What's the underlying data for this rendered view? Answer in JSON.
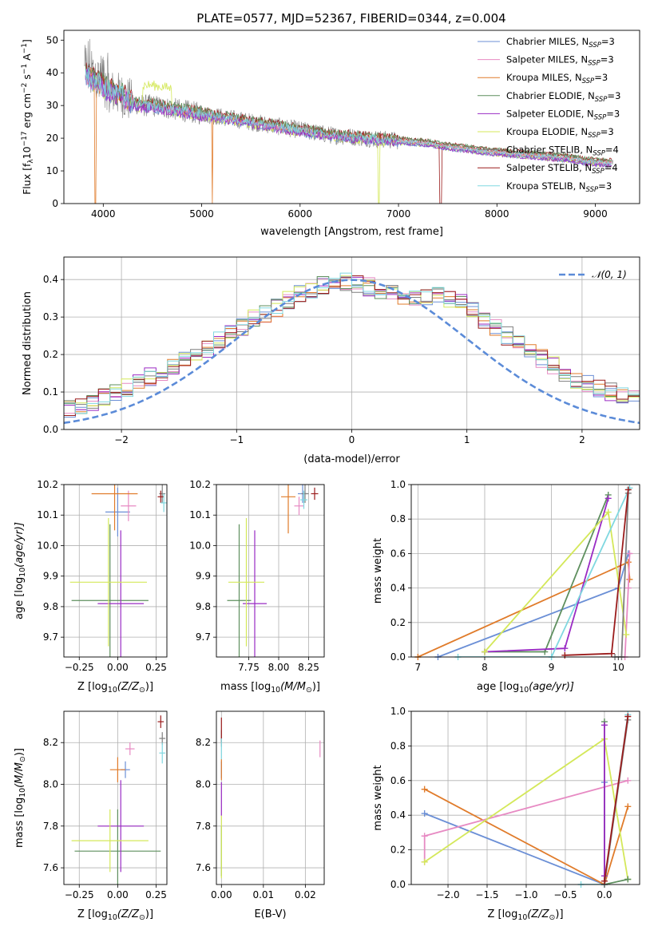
{
  "figure_title": "PLATE=0577, MJD=52367, FIBERID=0344, z=0.004",
  "colors": {
    "Chabrier MILES": "#6b8fd6",
    "Salpeter MILES": "#e78ac3",
    "Kroupa MILES": "#e07b2a",
    "Chabrier ELODIE": "#5e8f5e",
    "Salpeter ELODIE": "#9a2bc4",
    "Kroupa ELODIE": "#d4e85a",
    "Chabrier STELIB": "#7f7f7f",
    "Salpeter STELIB": "#9b1c1c",
    "Kroupa STELIB": "#80d8e0"
  },
  "chart_data": [
    {
      "id": "spectrum",
      "type": "line",
      "xlabel": "wavelength [Angstrom, rest frame]",
      "ylabel": "Flux [f",
      "ylabel_parts": [
        "Flux [f",
        "λ",
        "10",
        "−17",
        " erg cm",
        "−2",
        " s",
        "−1",
        " A",
        "−1",
        "]"
      ],
      "xlim": [
        3600,
        9450
      ],
      "ylim": [
        0,
        53
      ],
      "xticks": [
        4000,
        5000,
        6000,
        7000,
        8000,
        9000
      ],
      "yticks": [
        0,
        10,
        20,
        30,
        40,
        50
      ],
      "grid": false,
      "legend": "right",
      "legend_entries": [
        {
          "name": "Chabrier MILES",
          "nssp": "3"
        },
        {
          "name": "Salpeter MILES",
          "nssp": "3"
        },
        {
          "name": "Kroupa MILES",
          "nssp": "3"
        },
        {
          "name": "Chabrier ELODIE",
          "nssp": "3"
        },
        {
          "name": "Salpeter ELODIE",
          "nssp": "3"
        },
        {
          "name": "Kroupa ELODIE",
          "nssp": "3"
        },
        {
          "name": "Chabrier STELIB",
          "nssp": "4"
        },
        {
          "name": "Salpeter STELIB",
          "nssp": "4"
        },
        {
          "name": "Kroupa STELIB",
          "nssp": "3"
        }
      ],
      "legend_suffix": ", N",
      "legend_sub": "SSP",
      "legend_eq": "=",
      "continuum": {
        "wavelength": [
          3800,
          3900,
          4000,
          4100,
          4200,
          4300,
          4400,
          4500,
          4700,
          4900,
          5100,
          5300,
          5500,
          5700,
          5900,
          6100,
          6300,
          6500,
          6700,
          6900,
          7100,
          7300,
          7500,
          7700,
          7900,
          8100,
          8300,
          8500,
          8700,
          8900,
          9100,
          9200
        ],
        "flux": [
          40,
          38,
          36,
          34,
          33,
          31,
          30,
          30,
          29,
          28,
          27,
          26,
          25,
          24,
          23,
          22,
          21,
          20.5,
          20,
          19.5,
          19,
          18.5,
          17.5,
          16.8,
          16,
          15.5,
          15,
          14.5,
          14,
          13,
          12.5,
          12.5
        ]
      }
    },
    {
      "id": "residuals",
      "type": "line",
      "xlabel": "(data-model)/error",
      "ylabel": "Normed distribution",
      "xlim": [
        -2.5,
        2.5
      ],
      "ylim": [
        0,
        0.46
      ],
      "xticks": [
        -2,
        -1,
        0,
        1,
        2
      ],
      "xtick_labels": [
        "−2",
        "−1",
        "0",
        "1",
        "2"
      ],
      "yticks": [
        0.0,
        0.1,
        0.2,
        0.3,
        0.4
      ],
      "ytick_labels": [
        "0.0",
        "0.1",
        "0.2",
        "0.3",
        "0.4"
      ],
      "grid": true,
      "legend": "upper right",
      "legend_entries": [
        "𝒩(0, 1)"
      ],
      "gaussian": {
        "mean": 0,
        "sigma": 1
      },
      "hist_bin_width": 0.1,
      "hist_base": [
        0.03,
        0.03,
        0.035,
        0.04,
        0.045,
        0.055,
        0.065,
        0.075,
        0.085,
        0.095,
        0.11,
        0.125,
        0.14,
        0.155,
        0.17,
        0.185,
        0.2,
        0.215,
        0.235,
        0.255,
        0.275,
        0.295,
        0.31,
        0.325,
        0.345,
        0.36,
        0.375,
        0.385,
        0.39,
        0.395,
        0.39,
        0.38,
        0.37,
        0.36,
        0.355,
        0.35,
        0.35,
        0.355,
        0.35,
        0.34,
        0.32,
        0.295,
        0.27,
        0.25,
        0.23,
        0.21,
        0.19,
        0.17,
        0.15,
        0.13,
        0.12,
        0.11,
        0.1,
        0.09,
        0.085,
        0.08,
        0.07,
        0.06,
        0.055,
        0.05
      ]
    },
    {
      "id": "age-vs-Z",
      "type": "scatter",
      "xlabel": "Z [log",
      "xlabel_parts": [
        "Z [log",
        "10",
        "(Z/Z",
        "⊙",
        ")]"
      ],
      "ylabel_parts": [
        "age  [log",
        "10",
        "(age/yr)]"
      ],
      "xlim": [
        -0.35,
        0.32
      ],
      "ylim": [
        9.635,
        10.2
      ],
      "xticks": [
        -0.25,
        0.0,
        0.25
      ],
      "xtick_labels": [
        "−0.25",
        "0.00",
        "0.25"
      ],
      "yticks": [
        9.7,
        9.8,
        9.9,
        10.0,
        10.1,
        10.2
      ],
      "ytick_labels": [
        "9.7",
        "9.8",
        "9.9",
        "10.0",
        "10.1",
        "10.2"
      ],
      "grid": true,
      "points": [
        {
          "model": "Chabrier MILES",
          "x": 0.0,
          "y": 10.11,
          "xerr": 0.08,
          "yerr": 0.08
        },
        {
          "model": "Salpeter MILES",
          "x": 0.07,
          "y": 10.13,
          "xerr": 0.05,
          "yerr": 0.05
        },
        {
          "model": "Kroupa MILES",
          "x": -0.02,
          "y": 10.17,
          "xerr": 0.15,
          "yerr": 0.12
        },
        {
          "model": "Chabrier ELODIE",
          "x": -0.05,
          "y": 9.82,
          "xerr": 0.25,
          "yerr": 0.25
        },
        {
          "model": "Salpeter ELODIE",
          "x": 0.02,
          "y": 9.81,
          "xerr": 0.15,
          "yerr": 0.24
        },
        {
          "model": "Kroupa ELODIE",
          "x": -0.06,
          "y": 9.88,
          "xerr": 0.25,
          "yerr": 0.21
        },
        {
          "model": "Chabrier STELIB",
          "x": 0.29,
          "y": 10.17,
          "xerr": 0.02,
          "yerr": 0.03
        },
        {
          "model": "Salpeter STELIB",
          "x": 0.28,
          "y": 10.16,
          "xerr": 0.02,
          "yerr": 0.02
        },
        {
          "model": "Kroupa STELIB",
          "x": 0.3,
          "y": 10.14,
          "xerr": 0.02,
          "yerr": 0.03
        }
      ]
    },
    {
      "id": "age-vs-mass",
      "type": "scatter",
      "xlabel_parts": [
        "mass [log",
        "10",
        "(M/M",
        "⊙",
        ")]"
      ],
      "xlim": [
        7.48,
        8.38
      ],
      "ylim": [
        9.635,
        10.2
      ],
      "xticks": [
        7.75,
        8.0,
        8.25
      ],
      "xtick_labels": [
        "7.75",
        "8.00",
        "8.25"
      ],
      "yticks": [
        9.7,
        9.8,
        9.9,
        10.0,
        10.1,
        10.2
      ],
      "ytick_labels": [
        "9.7",
        "9.8",
        "9.9",
        "10.0",
        "10.1",
        "10.2"
      ],
      "grid": true,
      "points": [
        {
          "model": "Chabrier MILES",
          "x": 8.2,
          "y": 10.17,
          "xerr": 0.04,
          "yerr": 0.03
        },
        {
          "model": "Salpeter MILES",
          "x": 8.17,
          "y": 10.13,
          "xerr": 0.04,
          "yerr": 0.03
        },
        {
          "model": "Kroupa MILES",
          "x": 8.08,
          "y": 10.16,
          "xerr": 0.06,
          "yerr": 0.12
        },
        {
          "model": "Chabrier ELODIE",
          "x": 7.67,
          "y": 9.82,
          "xerr": 0.1,
          "yerr": 0.25
        },
        {
          "model": "Salpeter ELODIE",
          "x": 7.8,
          "y": 9.81,
          "xerr": 0.1,
          "yerr": 0.24
        },
        {
          "model": "Kroupa ELODIE",
          "x": 7.73,
          "y": 9.88,
          "xerr": 0.15,
          "yerr": 0.21
        },
        {
          "model": "Chabrier STELIB",
          "x": 8.22,
          "y": 10.17,
          "xerr": 0.03,
          "yerr": 0.03
        },
        {
          "model": "Salpeter STELIB",
          "x": 8.3,
          "y": 10.17,
          "xerr": 0.03,
          "yerr": 0.02
        },
        {
          "model": "Kroupa STELIB",
          "x": 8.21,
          "y": 10.15,
          "xerr": 0.03,
          "yerr": 0.03
        }
      ]
    },
    {
      "id": "weight-vs-age",
      "type": "line",
      "ylabel": "mass weight",
      "xlabel_parts": [
        "age  [log",
        "10",
        "(age/yr)]"
      ],
      "xlim": [
        6.9,
        10.32
      ],
      "ylim": [
        0.0,
        1.0
      ],
      "xticks": [
        7,
        8,
        9,
        10
      ],
      "xtick_labels": [
        "7",
        "8",
        "9",
        "10"
      ],
      "yticks": [
        0.0,
        0.2,
        0.4,
        0.6,
        0.8,
        1.0
      ],
      "ytick_labels": [
        "0.0",
        "0.2",
        "0.4",
        "0.6",
        "0.8",
        "1.0"
      ],
      "grid": true,
      "series": [
        {
          "model": "Chabrier MILES",
          "x": [
            7.3,
            10.0,
            10.15
          ],
          "y": [
            0.0,
            0.4,
            0.6
          ]
        },
        {
          "model": "Kroupa MILES",
          "x": [
            7.0,
            10.15,
            10.17
          ],
          "y": [
            0.0,
            0.55,
            0.45
          ]
        },
        {
          "model": "Salpeter MILES",
          "x": [
            10.1,
            10.15,
            10.17
          ],
          "y": [
            0.0,
            0.4,
            0.6
          ]
        },
        {
          "model": "Chabrier ELODIE",
          "x": [
            8.0,
            8.9,
            9.85
          ],
          "y": [
            0.03,
            0.03,
            0.94
          ]
        },
        {
          "model": "Salpeter ELODIE",
          "x": [
            8.0,
            9.2,
            9.85
          ],
          "y": [
            0.03,
            0.05,
            0.92
          ]
        },
        {
          "model": "Kroupa ELODIE",
          "x": [
            8.0,
            9.85,
            10.12
          ],
          "y": [
            0.03,
            0.84,
            0.13
          ]
        },
        {
          "model": "Kroupa STELIB",
          "x": [
            7.6,
            9.0,
            10.17
          ],
          "y": [
            0.0,
            0.0,
            0.98
          ]
        },
        {
          "model": "Chabrier STELIB",
          "x": [
            9.95,
            10.05,
            10.15
          ],
          "y": [
            0.0,
            0.0,
            0.95
          ]
        },
        {
          "model": "Salpeter STELIB",
          "x": [
            9.2,
            9.9,
            10.15
          ],
          "y": [
            0.01,
            0.02,
            0.97
          ]
        }
      ]
    },
    {
      "id": "mass-vs-Z",
      "type": "scatter",
      "xlabel_parts": [
        "Z [log",
        "10",
        "(Z/Z",
        "⊙",
        ")]"
      ],
      "ylabel_parts": [
        "mass [log",
        "10",
        "(M/M",
        "⊙",
        ")]"
      ],
      "xlim": [
        -0.35,
        0.32
      ],
      "ylim": [
        7.52,
        8.35
      ],
      "xticks": [
        -0.25,
        0.0,
        0.25
      ],
      "xtick_labels": [
        "−0.25",
        "0.00",
        "0.25"
      ],
      "yticks": [
        7.6,
        7.8,
        8.0,
        8.2
      ],
      "ytick_labels": [
        "7.6",
        "7.8",
        "8.0",
        "8.2"
      ],
      "grid": true,
      "points": [
        {
          "model": "Chabrier MILES",
          "x": 0.05,
          "y": 8.07,
          "xerr": 0.03,
          "yerr": 0.04
        },
        {
          "model": "Salpeter MILES",
          "x": 0.08,
          "y": 8.17,
          "xerr": 0.03,
          "yerr": 0.03
        },
        {
          "model": "Kroupa MILES",
          "x": 0.0,
          "y": 8.07,
          "xerr": 0.05,
          "yerr": 0.06
        },
        {
          "model": "Chabrier ELODIE",
          "x": 0.0,
          "y": 7.68,
          "xerr": 0.28,
          "yerr": 0.2
        },
        {
          "model": "Salpeter ELODIE",
          "x": 0.02,
          "y": 7.8,
          "xerr": 0.15,
          "yerr": 0.22
        },
        {
          "model": "Kroupa ELODIE",
          "x": -0.05,
          "y": 7.73,
          "xerr": 0.25,
          "yerr": 0.15
        },
        {
          "model": "Chabrier STELIB",
          "x": 0.29,
          "y": 8.22,
          "xerr": 0.02,
          "yerr": 0.03
        },
        {
          "model": "Salpeter STELIB",
          "x": 0.28,
          "y": 8.3,
          "xerr": 0.02,
          "yerr": 0.03
        },
        {
          "model": "Kroupa STELIB",
          "x": 0.29,
          "y": 8.15,
          "xerr": 0.02,
          "yerr": 0.05
        }
      ]
    },
    {
      "id": "mass-vs-EBV",
      "type": "scatter",
      "xlabel": "E(B-V)",
      "xlim": [
        -0.0012,
        0.0245
      ],
      "ylim": [
        7.52,
        8.35
      ],
      "xticks": [
        0.0,
        0.01,
        0.02
      ],
      "xtick_labels": [
        "0.00",
        "0.01",
        "0.02"
      ],
      "yticks": [
        7.6,
        7.8,
        8.0,
        8.2
      ],
      "ytick_labels": [
        "7.6",
        "7.8",
        "8.0",
        "8.2"
      ],
      "grid": true,
      "points": [
        {
          "model": "Chabrier MILES",
          "x": 0.0,
          "y": 8.07,
          "yerr": 0.04
        },
        {
          "model": "Salpeter MILES",
          "x": 0.0235,
          "y": 8.17,
          "yerr": 0.04
        },
        {
          "model": "Kroupa MILES",
          "x": 0.0,
          "y": 8.07,
          "yerr": 0.05
        },
        {
          "model": "Chabrier ELODIE",
          "x": 0.0,
          "y": 7.68,
          "yerr": 0.12
        },
        {
          "model": "Salpeter ELODIE",
          "x": 0.0,
          "y": 7.93,
          "yerr": 0.08
        },
        {
          "model": "Kroupa ELODIE",
          "x": 0.0,
          "y": 7.7,
          "yerr": 0.15
        },
        {
          "model": "Chabrier STELIB",
          "x": 0.0,
          "y": 8.22,
          "yerr": 0.04
        },
        {
          "model": "Salpeter STELIB",
          "x": 0.0,
          "y": 8.26,
          "yerr": 0.06
        },
        {
          "model": "Kroupa STELIB",
          "x": 0.0,
          "y": 8.17,
          "yerr": 0.05
        }
      ]
    },
    {
      "id": "weight-vs-Z",
      "type": "line",
      "ylabel": "mass weight",
      "xlabel_parts": [
        "Z [log",
        "10",
        "(Z/Z",
        "⊙",
        ")]"
      ],
      "xlim": [
        -2.47,
        0.45
      ],
      "ylim": [
        0.0,
        1.0
      ],
      "xticks": [
        -2.0,
        -1.5,
        -1.0,
        -0.5,
        0.0
      ],
      "xtick_labels": [
        "−2.0",
        "−1.5",
        "−1.0",
        "−0.5",
        "0.0"
      ],
      "yticks": [
        0.0,
        0.2,
        0.4,
        0.6,
        0.8,
        1.0
      ],
      "ytick_labels": [
        "0.0",
        "0.2",
        "0.4",
        "0.6",
        "0.8",
        "1.0"
      ],
      "grid": true,
      "series": [
        {
          "model": "Chabrier MILES",
          "x": [
            -2.3,
            0.0,
            0.0
          ],
          "y": [
            0.41,
            0.0,
            0.59
          ]
        },
        {
          "model": "Kroupa MILES",
          "x": [
            -2.3,
            0.0,
            0.3
          ],
          "y": [
            0.55,
            0.0,
            0.45
          ]
        },
        {
          "model": "Salpeter MILES",
          "x": [
            -2.3,
            -2.3,
            0.3
          ],
          "y": [
            0.13,
            0.28,
            0.6
          ]
        },
        {
          "model": "Kroupa ELODIE",
          "x": [
            -2.3,
            0.0,
            0.3
          ],
          "y": [
            0.13,
            0.84,
            0.03
          ]
        },
        {
          "model": "Chabrier ELODIE",
          "x": [
            0.0,
            0.0,
            0.3
          ],
          "y": [
            0.94,
            0.0,
            0.03
          ]
        },
        {
          "model": "Salpeter ELODIE",
          "x": [
            0.0,
            0.0
          ],
          "y": [
            0.92,
            0.05
          ]
        },
        {
          "model": "Kroupa STELIB",
          "x": [
            -0.3,
            0.0,
            0.3
          ],
          "y": [
            0.0,
            0.0,
            0.98
          ]
        },
        {
          "model": "Chabrier STELIB",
          "x": [
            0.0,
            0.3
          ],
          "y": [
            0.0,
            0.95
          ]
        },
        {
          "model": "Salpeter STELIB",
          "x": [
            0.0,
            0.3
          ],
          "y": [
            0.02,
            0.97
          ]
        }
      ]
    }
  ]
}
